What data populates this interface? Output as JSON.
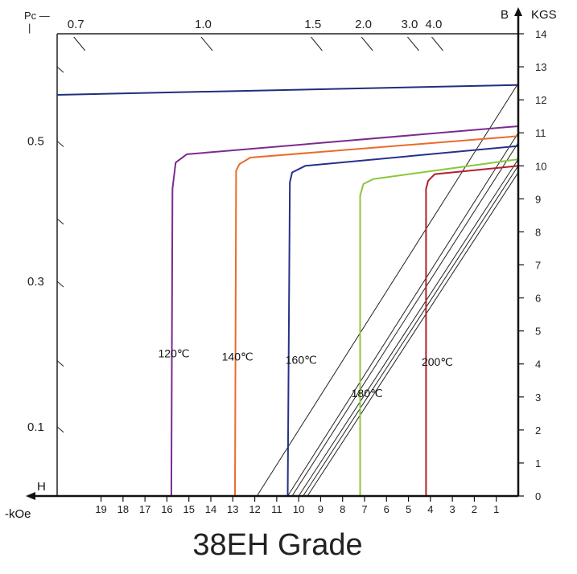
{
  "chart_data": {
    "type": "line",
    "title": "38EH Grade",
    "xlabel": "H",
    "xunit": "-kOe",
    "ylabel": "B",
    "yunit": "KGS",
    "pc_label": "Pc",
    "xlim": [
      0,
      21
    ],
    "ylim": [
      0,
      14
    ],
    "x_ticks": [
      19,
      18,
      17,
      16,
      15,
      14,
      13,
      12,
      11,
      10,
      9,
      8,
      7,
      6,
      5,
      4,
      3,
      2,
      1
    ],
    "y_ticks": [
      0,
      1,
      2,
      3,
      4,
      5,
      6,
      7,
      8,
      9,
      10,
      11,
      12,
      13,
      14
    ],
    "left_pc_ticks": [
      {
        "label": "0.5",
        "b": 10.75
      },
      {
        "label": "0.3",
        "b": 6.5
      },
      {
        "label": "0.1",
        "b": 2.1
      }
    ],
    "top_pc_ticks": [
      {
        "label": "0.7",
        "h": 19.8
      },
      {
        "label": "1.0",
        "h": 14.0
      },
      {
        "label": "1.5",
        "h": 9.0
      },
      {
        "label": "2.0",
        "h": 6.7
      },
      {
        "label": "3.0",
        "h": 4.6
      },
      {
        "label": "4.0",
        "h": 3.5
      }
    ],
    "series": [
      {
        "color": "#1f2f7a",
        "points": [
          [
            21,
            12.15
          ],
          [
            0,
            12.45
          ]
        ]
      },
      {
        "name": "120℃",
        "color": "#7b2b8f",
        "points": [
          [
            15.8,
            0
          ],
          [
            15.75,
            9.3
          ],
          [
            15.6,
            10.1
          ],
          [
            15.1,
            10.35
          ],
          [
            0,
            11.2
          ]
        ]
      },
      {
        "name": "140℃",
        "color": "#ec6a2a",
        "points": [
          [
            12.9,
            0
          ],
          [
            12.85,
            9.85
          ],
          [
            12.7,
            10.05
          ],
          [
            12.2,
            10.25
          ],
          [
            0,
            10.9
          ]
        ]
      },
      {
        "name": "160℃",
        "color": "#27308a",
        "points": [
          [
            10.5,
            0
          ],
          [
            10.4,
            9.5
          ],
          [
            10.3,
            9.8
          ],
          [
            9.7,
            10.0
          ],
          [
            0,
            10.6
          ]
        ]
      },
      {
        "name": "180℃",
        "color": "#8cc63f",
        "points": [
          [
            7.2,
            0
          ],
          [
            7.2,
            9.1
          ],
          [
            7.05,
            9.45
          ],
          [
            6.6,
            9.6
          ],
          [
            0,
            10.2
          ]
        ]
      },
      {
        "name": "200℃",
        "color": "#b0202a",
        "points": [
          [
            4.2,
            0
          ],
          [
            4.2,
            9.3
          ],
          [
            4.1,
            9.55
          ],
          [
            3.8,
            9.75
          ],
          [
            0,
            10.0
          ]
        ]
      }
    ],
    "curve_labels": [
      {
        "name": "120℃",
        "h": 16.4,
        "b": 4.2
      },
      {
        "name": "140℃",
        "h": 13.5,
        "b": 4.1
      },
      {
        "name": "160℃",
        "h": 10.6,
        "b": 4.0
      },
      {
        "name": "180℃",
        "h": 7.6,
        "b": 3.0
      },
      {
        "name": "200℃",
        "h": 4.4,
        "b": 3.95
      }
    ],
    "recoil_lines": [
      [
        [
          11.9,
          0
        ],
        [
          0,
          12.5
        ]
      ],
      [
        [
          10.5,
          0
        ],
        [
          0,
          11.0
        ]
      ],
      [
        [
          10.3,
          0
        ],
        [
          0,
          10.7
        ]
      ],
      [
        [
          10.0,
          0
        ],
        [
          0,
          10.2
        ]
      ],
      [
        [
          9.8,
          0
        ],
        [
          0,
          10.0
        ]
      ],
      [
        [
          9.6,
          0
        ],
        [
          0,
          9.8
        ]
      ]
    ]
  }
}
